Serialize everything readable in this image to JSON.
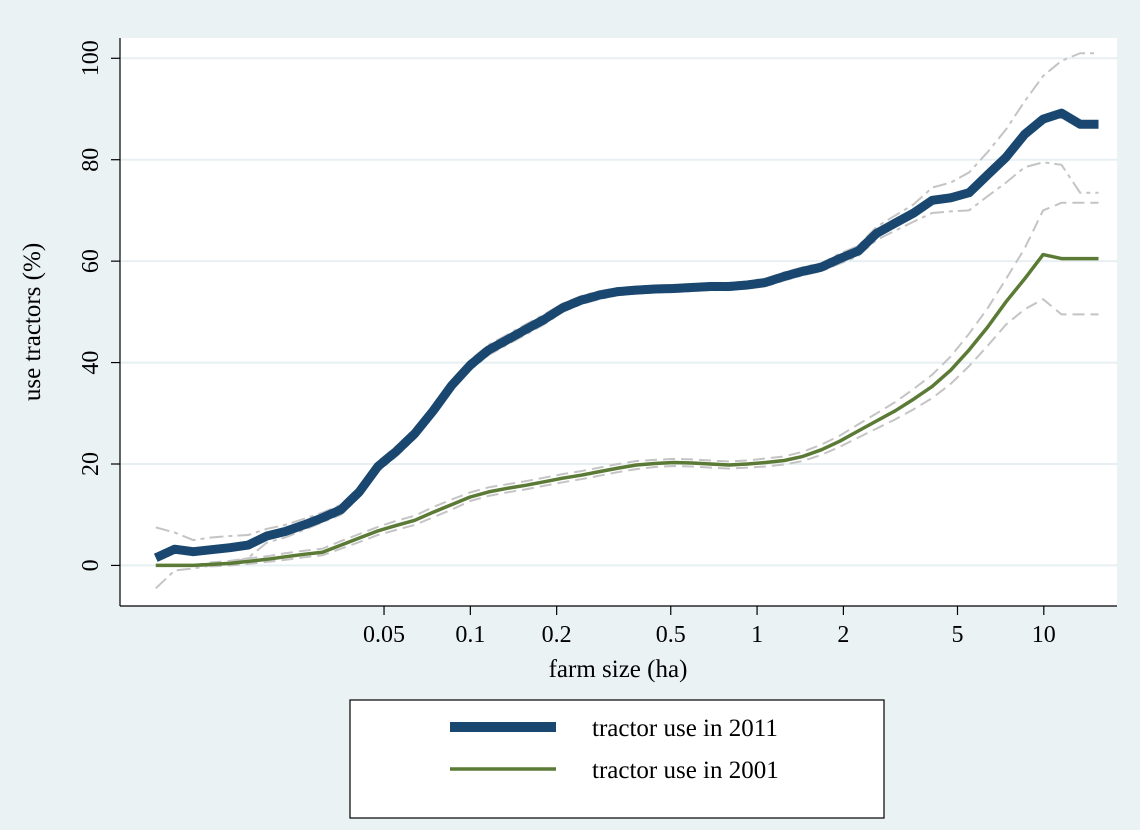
{
  "chart_data": {
    "type": "line",
    "xlabel": "farm size (ha)",
    "ylabel": "use tractors (%)",
    "xscale": "log",
    "xlim": [
      0.006,
      18
    ],
    "ylim": [
      -8,
      104
    ],
    "x_ticks": [
      {
        "value": 0.05,
        "label": "0.05"
      },
      {
        "value": 0.1,
        "label": "0.1"
      },
      {
        "value": 0.2,
        "label": "0.2"
      },
      {
        "value": 0.5,
        "label": "0.5"
      },
      {
        "value": 1,
        "label": "1"
      },
      {
        "value": 2,
        "label": "2"
      },
      {
        "value": 5,
        "label": "5"
      },
      {
        "value": 10,
        "label": "10"
      }
    ],
    "y_ticks": [
      {
        "value": 0,
        "label": "0"
      },
      {
        "value": 20,
        "label": "20"
      },
      {
        "value": 40,
        "label": "40"
      },
      {
        "value": 60,
        "label": "60"
      },
      {
        "value": 80,
        "label": "80"
      },
      {
        "value": 100,
        "label": "100"
      }
    ],
    "grid": true,
    "legend_position": "bottom",
    "series": [
      {
        "name": "tractor use in 2011",
        "color": "#1a476f",
        "x": [
          0.008,
          0.0093,
          0.0108,
          0.0125,
          0.0145,
          0.0168,
          0.0195,
          0.0226,
          0.0263,
          0.0305,
          0.0354,
          0.041,
          0.0476,
          0.0552,
          0.064,
          0.0742,
          0.0861,
          0.0999,
          0.1159,
          0.1344,
          0.1559,
          0.1808,
          0.2097,
          0.2433,
          0.2822,
          0.3274,
          0.3797,
          0.4404,
          0.5109,
          0.5926,
          0.6874,
          0.7974,
          0.925,
          1.073,
          1.244,
          1.444,
          1.675,
          1.943,
          2.253,
          2.614,
          3.032,
          3.517,
          4.08,
          4.733,
          5.49,
          6.369,
          7.388,
          8.57,
          9.941,
          11.53,
          13.38,
          15.52
        ],
        "y": [
          1.5,
          3.2,
          2.7,
          3.1,
          3.5,
          4.0,
          5.8,
          6.7,
          8.0,
          9.4,
          11.0,
          14.5,
          19.5,
          22.5,
          26.0,
          30.5,
          35.5,
          39.5,
          42.5,
          44.5,
          46.5,
          48.5,
          50.8,
          52.3,
          53.3,
          54.0,
          54.3,
          54.5,
          54.6,
          54.8,
          55.0,
          55.0,
          55.3,
          55.8,
          57.0,
          58.0,
          58.8,
          60.5,
          62.0,
          65.5,
          67.5,
          69.5,
          72.0,
          72.5,
          73.5,
          77.0,
          80.5,
          85.0,
          88.0,
          89.2,
          87.0,
          87.0
        ],
        "ci_lower": [
          -4.5,
          -1.0,
          -0.6,
          0.0,
          0.5,
          1.5,
          4.5,
          5.5,
          7.0,
          8.5,
          10.0,
          13.5,
          18.5,
          21.5,
          25.0,
          29.5,
          34.5,
          38.5,
          41.5,
          43.5,
          45.5,
          47.5,
          50.0,
          51.5,
          52.5,
          53.3,
          53.6,
          53.8,
          53.9,
          54.1,
          54.3,
          54.3,
          54.6,
          55.0,
          56.2,
          57.2,
          58.0,
          59.5,
          61.0,
          64.2,
          66.0,
          67.8,
          69.5,
          69.8,
          70.0,
          72.8,
          75.5,
          78.5,
          79.5,
          79.0,
          73.5,
          73.5
        ],
        "ci_upper": [
          7.5,
          6.5,
          5.0,
          5.5,
          5.8,
          6.0,
          7.2,
          8.0,
          9.2,
          10.4,
          12.0,
          15.5,
          20.5,
          23.5,
          27.0,
          31.5,
          36.5,
          40.5,
          43.5,
          45.5,
          47.5,
          49.5,
          51.6,
          53.1,
          54.1,
          54.7,
          55.0,
          55.2,
          55.3,
          55.5,
          55.7,
          55.7,
          56.0,
          56.6,
          57.8,
          58.8,
          59.6,
          61.5,
          63.0,
          66.8,
          69.0,
          71.2,
          74.5,
          75.5,
          77.5,
          81.5,
          86.0,
          91.5,
          96.5,
          99.5,
          101.0,
          101.0
        ]
      },
      {
        "name": "tractor use in 2001",
        "color": "#5a7a35",
        "x": [
          0.008,
          0.0093,
          0.0108,
          0.0125,
          0.0145,
          0.0168,
          0.0195,
          0.0226,
          0.0263,
          0.0305,
          0.0354,
          0.041,
          0.0476,
          0.0552,
          0.064,
          0.0742,
          0.0861,
          0.0999,
          0.1159,
          0.1344,
          0.1559,
          0.1808,
          0.2097,
          0.2433,
          0.2822,
          0.3274,
          0.3797,
          0.4404,
          0.5109,
          0.5926,
          0.6874,
          0.7974,
          0.925,
          1.073,
          1.244,
          1.444,
          1.675,
          1.943,
          2.253,
          2.614,
          3.032,
          3.517,
          4.08,
          4.733,
          5.49,
          6.369,
          7.388,
          8.57,
          9.941,
          11.53,
          13.38,
          15.52
        ],
        "y": [
          0.0,
          0.0,
          0.0,
          0.2,
          0.4,
          0.8,
          1.2,
          1.7,
          2.2,
          2.6,
          4.0,
          5.4,
          6.8,
          7.9,
          8.9,
          10.5,
          12.0,
          13.5,
          14.5,
          15.2,
          15.8,
          16.5,
          17.2,
          17.8,
          18.5,
          19.2,
          19.8,
          20.1,
          20.3,
          20.2,
          20.0,
          19.8,
          20.0,
          20.3,
          20.7,
          21.5,
          22.8,
          24.5,
          26.5,
          28.5,
          30.5,
          32.8,
          35.3,
          38.5,
          42.5,
          47.0,
          52.0,
          56.5,
          61.3,
          60.5,
          60.5,
          60.5
        ],
        "ci_lower": [
          0.0,
          0.0,
          0.0,
          -0.2,
          0.0,
          0.3,
          0.7,
          1.1,
          1.6,
          2.0,
          3.3,
          4.6,
          6.0,
          7.0,
          8.0,
          9.5,
          11.0,
          12.7,
          13.7,
          14.4,
          15.0,
          15.7,
          16.4,
          17.0,
          17.7,
          18.4,
          19.0,
          19.4,
          19.6,
          19.5,
          19.3,
          19.1,
          19.3,
          19.5,
          19.9,
          20.6,
          21.8,
          23.4,
          25.2,
          27.0,
          28.8,
          30.8,
          33.0,
          35.8,
          39.3,
          43.3,
          47.5,
          50.5,
          52.5,
          49.5,
          49.5,
          49.5
        ],
        "ci_upper": [
          0.0,
          0.0,
          0.0,
          0.6,
          0.9,
          1.4,
          1.8,
          2.4,
          2.9,
          3.3,
          4.8,
          6.2,
          7.6,
          8.8,
          9.8,
          11.5,
          13.0,
          14.4,
          15.4,
          16.0,
          16.6,
          17.3,
          18.0,
          18.6,
          19.3,
          20.0,
          20.6,
          20.8,
          21.0,
          20.9,
          20.7,
          20.5,
          20.7,
          21.1,
          21.5,
          22.4,
          23.8,
          25.6,
          27.8,
          30.0,
          32.2,
          34.8,
          37.6,
          41.2,
          45.7,
          50.7,
          56.5,
          62.5,
          70.0,
          71.5,
          71.5,
          71.5
        ]
      }
    ]
  }
}
